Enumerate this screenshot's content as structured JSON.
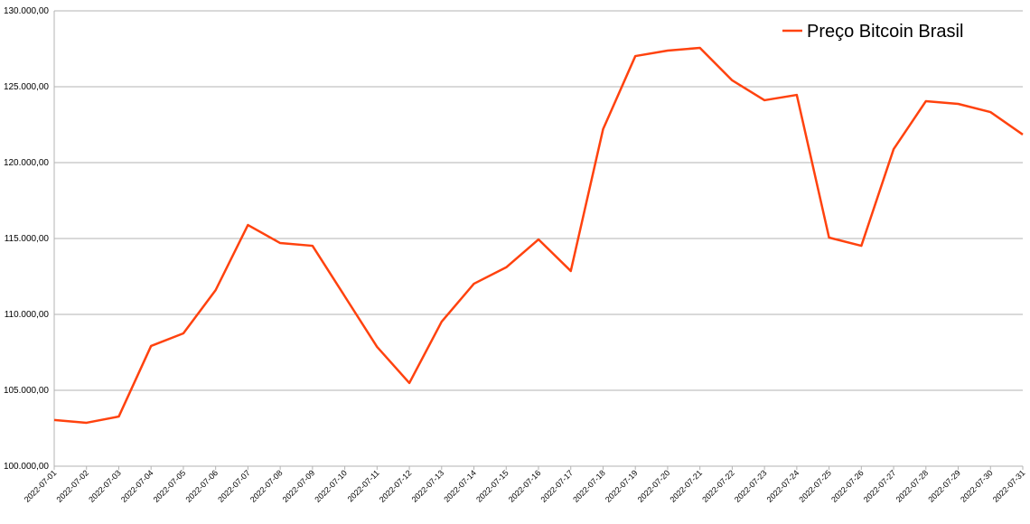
{
  "chart_data": {
    "type": "line",
    "x": [
      "2022-07-01",
      "2022-07-02",
      "2022-07-03",
      "2022-07-04",
      "2022-07-05",
      "2022-07-06",
      "2022-07-07",
      "2022-07-08",
      "2022-07-09",
      "2022-07-10",
      "2022-07-11",
      "2022-07-12",
      "2022-07-13",
      "2022-07-14",
      "2022-07-15",
      "2022-07-16",
      "2022-07-17",
      "2022-07-18",
      "2022-07-19",
      "2022-07-20",
      "2022-07-21",
      "2022-07-22",
      "2022-07-23",
      "2022-07-24",
      "2022-07-25",
      "2022-07-26",
      "2022-07-27",
      "2022-07-28",
      "2022-07-29",
      "2022-07-30",
      "2022-07-31"
    ],
    "series": [
      {
        "name": "Preço Bitcoin Brasil",
        "color": "#ff420e",
        "values": [
          103040,
          102860,
          103270,
          107920,
          108750,
          111600,
          115890,
          114700,
          114520,
          111190,
          107860,
          105480,
          109520,
          112020,
          113100,
          114940,
          112860,
          122200,
          127020,
          127380,
          127560,
          125420,
          124110,
          124460,
          115060,
          114520,
          120890,
          124050,
          123870,
          123330,
          121850
        ]
      }
    ],
    "ylim": [
      100000,
      130000
    ],
    "yticks": [
      {
        "value": 100000,
        "label": "100.000,00"
      },
      {
        "value": 105000,
        "label": "105.000,00"
      },
      {
        "value": 110000,
        "label": "110.000,00"
      },
      {
        "value": 115000,
        "label": "115.000,00"
      },
      {
        "value": 120000,
        "label": "120.000,00"
      },
      {
        "value": 125000,
        "label": "125.000,00"
      },
      {
        "value": 130000,
        "label": "130.000,00"
      }
    ],
    "grid": true,
    "legend": "top-right"
  }
}
